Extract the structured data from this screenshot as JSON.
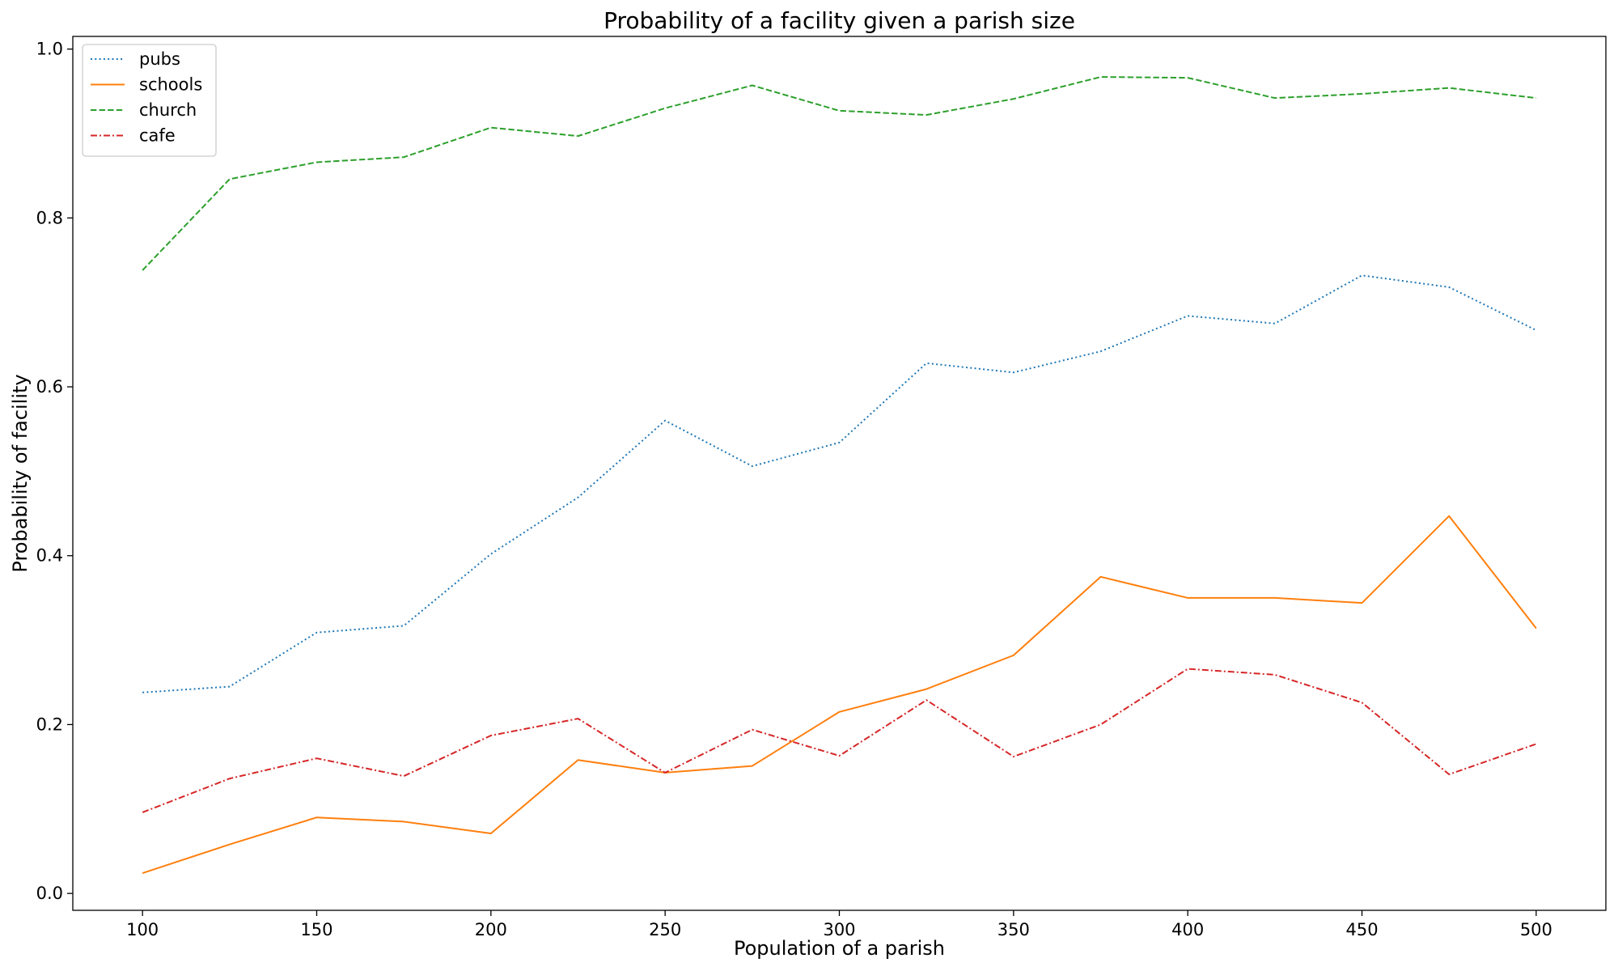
{
  "chart_data": {
    "type": "line",
    "title": "Probability of a facility given a parish size",
    "xlabel": "Population of a parish",
    "ylabel": "Probability of facility",
    "xlim": [
      80,
      520
    ],
    "ylim": [
      -0.02,
      1.015
    ],
    "xticks": [
      "100",
      "150",
      "200",
      "250",
      "300",
      "350",
      "400",
      "450",
      "500"
    ],
    "yticks": [
      "0.0",
      "0.2",
      "0.4",
      "0.6",
      "0.8",
      "1.0"
    ],
    "grid": false,
    "legend_position": "top-left",
    "x": [
      100,
      125,
      150,
      175,
      200,
      225,
      250,
      275,
      300,
      325,
      350,
      375,
      400,
      425,
      450,
      475,
      500
    ],
    "series": [
      {
        "name": "pubs",
        "color": "#1f77b4",
        "style": "dotted",
        "values": [
          0.238,
          0.245,
          0.309,
          0.317,
          0.402,
          0.469,
          0.56,
          0.506,
          0.534,
          0.628,
          0.617,
          0.642,
          0.684,
          0.675,
          0.732,
          0.718,
          0.667
        ]
      },
      {
        "name": "schools",
        "color": "#ff7f0e",
        "style": "solid",
        "values": [
          0.024,
          0.058,
          0.09,
          0.085,
          0.071,
          0.158,
          0.143,
          0.151,
          0.215,
          0.242,
          0.282,
          0.375,
          0.35,
          0.35,
          0.344,
          0.447,
          0.314
        ]
      },
      {
        "name": "church",
        "color": "#2ca02c",
        "style": "dashed",
        "values": [
          0.738,
          0.846,
          0.866,
          0.872,
          0.907,
          0.897,
          0.93,
          0.957,
          0.927,
          0.922,
          0.941,
          0.967,
          0.966,
          0.942,
          0.947,
          0.954,
          0.942
        ]
      },
      {
        "name": "cafe",
        "color": "#d62728",
        "style": "dashdot",
        "values": [
          0.096,
          0.136,
          0.16,
          0.139,
          0.187,
          0.207,
          0.143,
          0.194,
          0.163,
          0.229,
          0.162,
          0.2,
          0.266,
          0.259,
          0.226,
          0.141,
          0.177
        ]
      }
    ]
  }
}
